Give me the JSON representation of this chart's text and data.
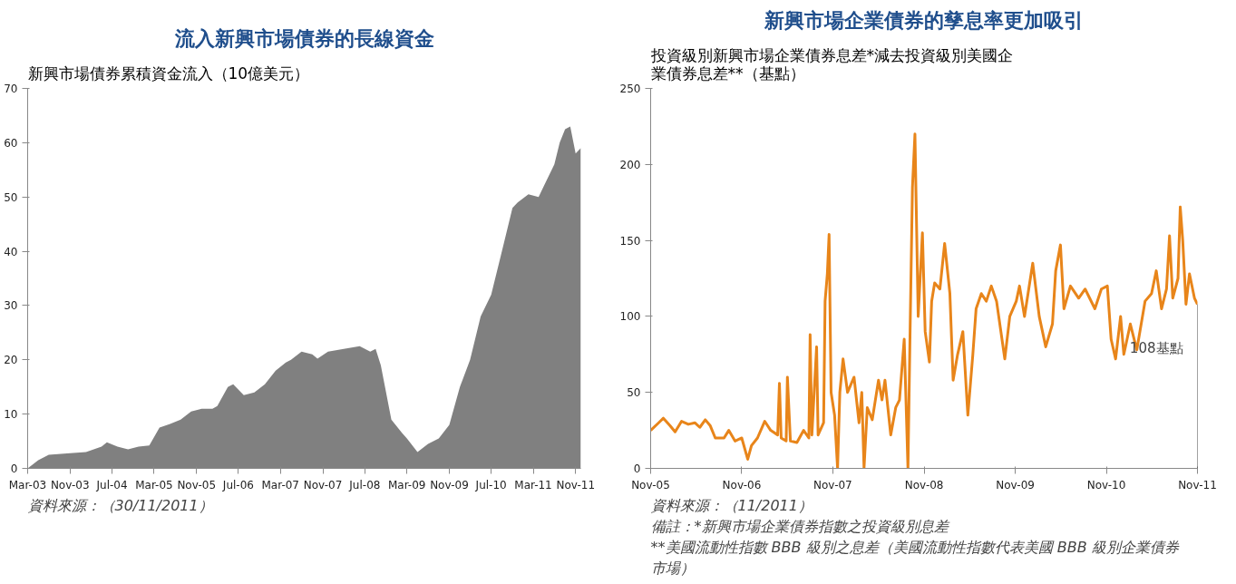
{
  "chart_data": [
    {
      "type": "area",
      "title": "流入新興市場債券的長線資金",
      "subtitle": "新興市場債券累積資金流入（10億美元）",
      "annotations": [
        "資料來源：（30/11/2011）"
      ],
      "color": "#808080",
      "x": [
        "2003-03",
        "2003-05",
        "2003-07",
        "2003-11",
        "2004-02",
        "2004-05",
        "2004-06",
        "2004-08",
        "2004-10",
        "2004-12",
        "2005-02",
        "2005-04",
        "2005-06",
        "2005-08",
        "2005-10",
        "2005-12",
        "2006-02",
        "2006-03",
        "2006-05",
        "2006-06",
        "2006-08",
        "2006-10",
        "2006-12",
        "2007-02",
        "2007-04",
        "2007-05",
        "2007-07",
        "2007-09",
        "2007-10",
        "2007-12",
        "2008-03",
        "2008-06",
        "2008-08",
        "2008-09",
        "2008-10",
        "2008-12",
        "2009-02",
        "2009-03",
        "2009-05",
        "2009-07",
        "2009-09",
        "2009-11",
        "2010-01",
        "2010-03",
        "2010-05",
        "2010-07",
        "2010-09",
        "2010-11",
        "2010-12",
        "2011-02",
        "2011-04",
        "2011-05",
        "2011-07",
        "2011-08",
        "2011-09",
        "2011-10",
        "2011-11",
        "2011-12"
      ],
      "values": [
        0,
        1.5,
        2.5,
        2.8,
        3,
        4,
        4.8,
        4,
        3.5,
        4,
        4.2,
        7.5,
        8.2,
        9,
        10.5,
        11,
        11,
        11.5,
        15,
        15.5,
        13.5,
        14,
        15.5,
        18,
        19.5,
        20,
        21.5,
        21,
        20.2,
        21.5,
        22,
        22.5,
        21.5,
        22,
        19,
        9,
        6.5,
        5.5,
        3,
        4.5,
        5.5,
        8,
        15,
        20,
        28,
        32,
        40,
        48,
        49,
        50.5,
        50,
        52,
        56,
        60,
        62.5,
        63,
        58,
        59
      ],
      "xlim": [
        "2003-03",
        "2011-12"
      ],
      "ylim": [
        0,
        70
      ],
      "yticks": [
        0,
        10,
        20,
        30,
        40,
        50,
        60,
        70
      ],
      "xticks": [
        {
          "value": "2003-03",
          "label": "Mar-03"
        },
        {
          "value": "2003-11",
          "label": "Nov-03"
        },
        {
          "value": "2004-07",
          "label": "Jul-04"
        },
        {
          "value": "2005-03",
          "label": "Mar-05"
        },
        {
          "value": "2005-11",
          "label": "Nov-05"
        },
        {
          "value": "2006-07",
          "label": "Jul-06"
        },
        {
          "value": "2007-03",
          "label": "Mar-07"
        },
        {
          "value": "2007-11",
          "label": "Nov-07"
        },
        {
          "value": "2008-07",
          "label": "Jul-08"
        },
        {
          "value": "2009-03",
          "label": "Mar-09"
        },
        {
          "value": "2009-11",
          "label": "Nov-09"
        },
        {
          "value": "2010-07",
          "label": "Jul-10"
        },
        {
          "value": "2011-03",
          "label": "Mar-11"
        },
        {
          "value": "2011-11",
          "label": "Nov-11"
        }
      ]
    },
    {
      "type": "line",
      "title": "新興市場企業債券的孳息率更加吸引",
      "subtitle": "投資級別新興市場企業債券息差*減去投資級別美國企業債券息差**（基點）",
      "color": "#e8851a",
      "annotations": [
        "資料來源：（11/2011）",
        "備註：*新興市場企業債券指數之投資級別息差",
        "**美國流動性指數 BBB 級別之息差（美國流動性指數代表美國 BBB 級別企業債券市場）",
        {
          "text": "108基點",
          "x": "2011-11-01",
          "y": 108
        }
      ],
      "x": [
        "2005-11-01",
        "2005-12-03",
        "2005-12-22",
        "2006-01-18",
        "2006-02-07",
        "2006-03-05",
        "2006-04-01",
        "2006-04-27",
        "2006-05-17",
        "2006-06-08",
        "2006-06-28",
        "2006-07-18",
        "2006-08-22",
        "2006-09-10",
        "2006-10-05",
        "2006-11-01",
        "2006-11-25",
        "2006-12-10",
        "2007-01-03",
        "2007-02-01",
        "2007-02-25",
        "2007-03-25",
        "2007-04-01",
        "2007-04-08",
        "2007-04-28",
        "2007-05-03",
        "2007-05-15",
        "2007-06-10",
        "2007-07-07",
        "2007-07-28",
        "2007-08-02",
        "2007-08-09",
        "2007-08-28",
        "2007-09-03",
        "2007-09-25",
        "2007-10-01",
        "2007-10-10",
        "2007-10-17",
        "2007-10-25",
        "2007-11-08",
        "2007-11-20",
        "2007-11-29",
        "2007-12-12",
        "2007-12-30",
        "2008-01-25",
        "2008-02-14",
        "2008-02-25",
        "2008-03-05",
        "2008-03-18",
        "2008-04-07",
        "2008-05-02",
        "2008-05-16",
        "2008-05-28",
        "2008-06-20",
        "2008-07-10",
        "2008-07-25",
        "2008-08-13",
        "2008-08-28",
        "2008-09-05",
        "2008-09-15",
        "2008-09-25",
        "2008-10-08",
        "2008-10-25",
        "2008-11-05",
        "2008-11-22",
        "2008-12-01",
        "2008-12-13",
        "2009-01-03",
        "2009-01-22",
        "2009-02-12",
        "2009-02-25",
        "2009-03-15",
        "2009-04-05",
        "2009-04-25",
        "2009-05-15",
        "2009-05-28",
        "2009-06-18",
        "2009-07-08",
        "2009-07-28",
        "2009-08-18",
        "2009-09-20",
        "2009-10-10",
        "2009-11-05",
        "2009-11-18",
        "2009-12-08",
        "2010-01-10",
        "2010-02-05",
        "2010-03-03",
        "2010-03-30",
        "2010-04-12",
        "2010-05-01",
        "2010-05-15",
        "2010-06-10",
        "2010-07-13",
        "2010-08-08",
        "2010-09-16",
        "2010-10-12",
        "2010-11-05",
        "2010-11-20",
        "2010-12-08",
        "2010-12-28",
        "2011-01-10",
        "2011-02-05",
        "2011-03-03",
        "2011-04-05",
        "2011-05-01",
        "2011-05-20",
        "2011-06-10",
        "2011-06-30",
        "2011-07-12",
        "2011-07-25",
        "2011-08-15",
        "2011-08-24",
        "2011-09-03",
        "2011-09-16",
        "2011-09-30",
        "2011-10-20",
        "2011-11-01"
      ],
      "values": [
        25,
        30,
        33,
        28,
        24,
        31,
        29,
        30,
        27,
        32,
        28,
        20,
        20,
        25,
        18,
        20,
        6,
        15,
        20,
        31,
        25,
        22,
        56,
        20,
        18,
        60,
        18,
        17,
        25,
        20,
        88,
        22,
        80,
        22,
        30,
        110,
        128,
        154,
        50,
        35,
        0,
        50,
        72,
        50,
        60,
        30,
        50,
        0,
        40,
        32,
        58,
        45,
        58,
        22,
        40,
        45,
        85,
        0,
        85,
        185,
        220,
        100,
        155,
        90,
        70,
        110,
        122,
        118,
        148,
        115,
        58,
        75,
        90,
        35,
        75,
        105,
        115,
        110,
        120,
        110,
        72,
        100,
        110,
        120,
        100,
        135,
        100,
        80,
        95,
        130,
        147,
        105,
        120,
        112,
        118,
        105,
        118,
        120,
        85,
        72,
        100,
        75,
        95,
        78,
        110,
        115,
        130,
        105,
        118,
        153,
        112,
        125,
        172,
        150,
        108,
        128,
        112,
        108
      ],
      "xlim": [
        "2005-11-01",
        "2011-11-01"
      ],
      "ylim": [
        0,
        250
      ],
      "yticks": [
        0,
        50,
        100,
        150,
        200,
        250
      ],
      "xticks": [
        {
          "value": "2005-11-01",
          "label": "Nov-05"
        },
        {
          "value": "2006-11-01",
          "label": "Nov-06"
        },
        {
          "value": "2007-11-01",
          "label": "Nov-07"
        },
        {
          "value": "2008-11-01",
          "label": "Nov-08"
        },
        {
          "value": "2009-11-01",
          "label": "Nov-09"
        },
        {
          "value": "2010-11-01",
          "label": "Nov-10"
        },
        {
          "value": "2011-11-01",
          "label": "Nov-11"
        }
      ]
    }
  ]
}
